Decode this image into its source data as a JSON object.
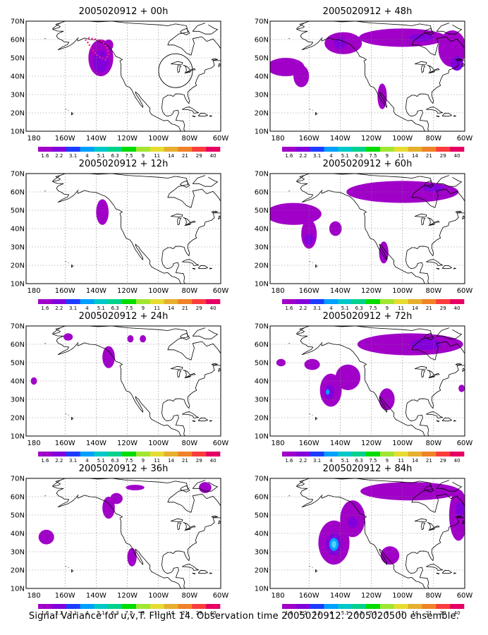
{
  "figure": {
    "caption": "Signal Variance for u,v,T. Flight 14. Observation time 2005020912. 2005020500 ensemble.",
    "lat_labels": [
      "70N",
      "60N",
      "50N",
      "40N",
      "30N",
      "20N",
      "10N"
    ],
    "lat_values": [
      70,
      60,
      50,
      40,
      30,
      20,
      10
    ],
    "lon_labels": [
      "180",
      "160W",
      "140W",
      "120W",
      "100W",
      "80W",
      "60W"
    ],
    "lon_values": [
      -180,
      -160,
      -140,
      -120,
      -100,
      -80,
      -60
    ],
    "extent": {
      "lon_min": -185,
      "lon_max": -60,
      "lat_min": 10,
      "lat_max": 70
    },
    "grid": "dotted",
    "colorbar": {
      "labels": [
        "1.6",
        "2.2",
        "3.1",
        "4",
        "5.1",
        "6.3",
        "7.5",
        "9",
        "11",
        "14",
        "21",
        "29",
        "40"
      ],
      "colors": [
        "#a000c8",
        "#8200dc",
        "#1e3cff",
        "#00a0ff",
        "#00c8c8",
        "#00d28c",
        "#00dc00",
        "#a0e632",
        "#e6dc32",
        "#e6af2d",
        "#f08228",
        "#fa3c3c",
        "#e60064"
      ]
    },
    "fill_colors": {
      "light": "#a000c8",
      "medium": "#8200dc",
      "dark": "#6440e0",
      "cyan": "#00a0ff",
      "light_cyan": "#50d2ff"
    }
  },
  "panels": [
    {
      "title": "2005020912 + 00h",
      "col": 0,
      "row": 0,
      "blobs": [
        {
          "lon": -137,
          "lat": 50,
          "rx": 8,
          "ry": 10,
          "level": "light"
        },
        {
          "lon": -137,
          "lat": 48,
          "rx": 5,
          "ry": 6,
          "level": "medium"
        },
        {
          "lon": -132,
          "lat": 57,
          "rx": 3,
          "ry": 3,
          "level": "light"
        }
      ],
      "flight_track": [
        [
          -147,
          60
        ],
        [
          -145,
          58
        ],
        [
          -143,
          55
        ],
        [
          -140,
          52
        ],
        [
          -137,
          50
        ],
        [
          -134,
          49
        ],
        [
          -132,
          52
        ],
        [
          -133,
          56
        ],
        [
          -136,
          59
        ],
        [
          -140,
          60
        ],
        [
          -145,
          61
        ]
      ]
    },
    {
      "title": "2005020912 + 12h",
      "col": 0,
      "row": 1,
      "blobs": [
        {
          "lon": -136,
          "lat": 49,
          "rx": 4,
          "ry": 7,
          "level": "light"
        }
      ]
    },
    {
      "title": "2005020912 + 24h",
      "col": 0,
      "row": 2,
      "blobs": [
        {
          "lon": -132,
          "lat": 53,
          "rx": 4,
          "ry": 6,
          "level": "light"
        },
        {
          "lon": -158,
          "lat": 64,
          "rx": 3,
          "ry": 2,
          "level": "light"
        },
        {
          "lon": -118,
          "lat": 63,
          "rx": 2,
          "ry": 2,
          "level": "light"
        },
        {
          "lon": -110,
          "lat": 63,
          "rx": 2,
          "ry": 2,
          "level": "light"
        },
        {
          "lon": -180,
          "lat": 40,
          "rx": 2,
          "ry": 2,
          "level": "light"
        }
      ]
    },
    {
      "title": "2005020912 + 36h",
      "col": 0,
      "row": 3,
      "blobs": [
        {
          "lon": -132,
          "lat": 54,
          "rx": 4,
          "ry": 6,
          "level": "light"
        },
        {
          "lon": -127,
          "lat": 59,
          "rx": 4,
          "ry": 3,
          "level": "light"
        },
        {
          "lon": -172,
          "lat": 38,
          "rx": 5,
          "ry": 4,
          "level": "light"
        },
        {
          "lon": -117,
          "lat": 27,
          "rx": 3,
          "ry": 5,
          "level": "light"
        },
        {
          "lon": -115,
          "lat": 65,
          "rx": 6,
          "ry": 1.5,
          "level": "light"
        },
        {
          "lon": -70,
          "lat": 65,
          "rx": 4,
          "ry": 3,
          "level": "light"
        }
      ]
    },
    {
      "title": "2005020912 + 48h",
      "col": 1,
      "row": 0,
      "blobs": [
        {
          "lon": -175,
          "lat": 45,
          "rx": 12,
          "ry": 5,
          "level": "light"
        },
        {
          "lon": -165,
          "lat": 40,
          "rx": 5,
          "ry": 6,
          "level": "light"
        },
        {
          "lon": -138,
          "lat": 58,
          "rx": 12,
          "ry": 6,
          "level": "light"
        },
        {
          "lon": -100,
          "lat": 61,
          "rx": 28,
          "ry": 5,
          "level": "light"
        },
        {
          "lon": -68,
          "lat": 55,
          "rx": 9,
          "ry": 10,
          "level": "light"
        },
        {
          "lon": -113,
          "lat": 29,
          "rx": 3,
          "ry": 7,
          "level": "light"
        },
        {
          "lon": -140,
          "lat": 58,
          "rx": 4,
          "ry": 3,
          "level": "medium"
        },
        {
          "lon": -65,
          "lat": 47,
          "rx": 4,
          "ry": 4,
          "level": "medium"
        },
        {
          "lon": -88,
          "lat": 61,
          "rx": 8,
          "ry": 2,
          "level": "medium"
        }
      ]
    },
    {
      "title": "2005020912 + 60h",
      "col": 1,
      "row": 1,
      "blobs": [
        {
          "lon": -170,
          "lat": 48,
          "rx": 18,
          "ry": 6,
          "level": "light"
        },
        {
          "lon": -160,
          "lat": 37,
          "rx": 5,
          "ry": 8,
          "level": "light"
        },
        {
          "lon": -143,
          "lat": 40,
          "rx": 4,
          "ry": 4,
          "level": "light"
        },
        {
          "lon": -100,
          "lat": 60,
          "rx": 36,
          "ry": 6,
          "level": "light"
        },
        {
          "lon": -112,
          "lat": 27,
          "rx": 3,
          "ry": 6,
          "level": "light"
        },
        {
          "lon": -160,
          "lat": 34,
          "rx": 3,
          "ry": 3,
          "level": "medium"
        },
        {
          "lon": -80,
          "lat": 62,
          "rx": 7,
          "ry": 2,
          "level": "medium"
        }
      ]
    },
    {
      "title": "2005020912 + 72h",
      "col": 1,
      "row": 2,
      "blobs": [
        {
          "lon": -158,
          "lat": 49,
          "rx": 5,
          "ry": 3,
          "level": "light"
        },
        {
          "lon": -178,
          "lat": 50,
          "rx": 3,
          "ry": 2,
          "level": "light"
        },
        {
          "lon": -146,
          "lat": 35,
          "rx": 7,
          "ry": 9,
          "level": "light"
        },
        {
          "lon": -135,
          "lat": 42,
          "rx": 8,
          "ry": 7,
          "level": "light"
        },
        {
          "lon": -110,
          "lat": 30,
          "rx": 5,
          "ry": 6,
          "level": "light"
        },
        {
          "lon": -95,
          "lat": 60,
          "rx": 34,
          "ry": 6,
          "level": "light"
        },
        {
          "lon": -62,
          "lat": 36,
          "rx": 2,
          "ry": 2,
          "level": "light"
        },
        {
          "lon": -147,
          "lat": 34,
          "rx": 3,
          "ry": 4,
          "level": "medium"
        },
        {
          "lon": -85,
          "lat": 60,
          "rx": 10,
          "ry": 3,
          "level": "medium"
        },
        {
          "lon": -148,
          "lat": 34,
          "rx": 1.2,
          "ry": 1.5,
          "level": "cyan"
        }
      ]
    },
    {
      "title": "2005020912 + 84h",
      "col": 1,
      "row": 3,
      "blobs": [
        {
          "lon": -144,
          "lat": 35,
          "rx": 10,
          "ry": 12,
          "level": "light"
        },
        {
          "lon": -132,
          "lat": 48,
          "rx": 8,
          "ry": 10,
          "level": "light"
        },
        {
          "lon": -108,
          "lat": 28,
          "rx": 6,
          "ry": 5,
          "level": "light"
        },
        {
          "lon": -95,
          "lat": 63,
          "rx": 32,
          "ry": 5,
          "level": "light"
        },
        {
          "lon": -64,
          "lat": 50,
          "rx": 6,
          "ry": 14,
          "level": "light"
        },
        {
          "lon": -144,
          "lat": 34,
          "rx": 5,
          "ry": 6,
          "level": "medium"
        },
        {
          "lon": -132,
          "lat": 46,
          "rx": 3,
          "ry": 3,
          "level": "medium"
        },
        {
          "lon": -63,
          "lat": 53,
          "rx": 3,
          "ry": 4,
          "level": "medium"
        },
        {
          "lon": -144,
          "lat": 34,
          "rx": 3,
          "ry": 3.5,
          "level": "cyan"
        },
        {
          "lon": -144,
          "lat": 34,
          "rx": 1.5,
          "ry": 2,
          "level": "light_cyan"
        }
      ]
    }
  ]
}
